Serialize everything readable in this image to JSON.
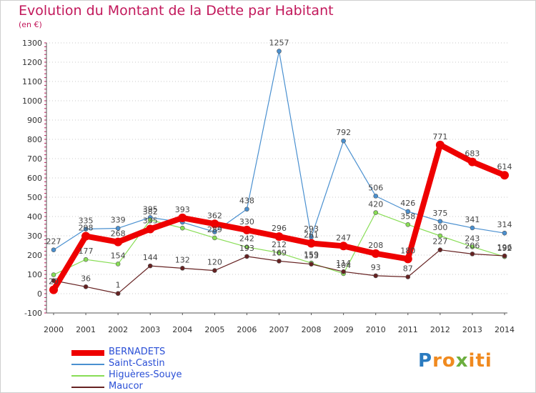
{
  "title": "Evolution du Montant de la Dette par Habitant",
  "subtitle": "(en €)",
  "logo_text": "Proxiti",
  "chart_data": {
    "type": "line",
    "title": "Evolution du Montant de la Dette par Habitant",
    "subtitle": "(en €)",
    "xlabel": "",
    "ylabel": "",
    "x": [
      "2000",
      "2001",
      "2002",
      "2003",
      "2004",
      "2005",
      "2006",
      "2007",
      "2008",
      "2009",
      "2010",
      "2011",
      "2012",
      "2013",
      "2014"
    ],
    "ylim": [
      -100,
      1300
    ],
    "yticks": [
      -100,
      0,
      100,
      200,
      300,
      400,
      500,
      600,
      700,
      800,
      900,
      1000,
      1100,
      1200,
      1300
    ],
    "grid": "horizontal dotted",
    "legend_position": "bottom-left",
    "series": [
      {
        "name": "BERNADETS",
        "color": "#ee0000",
        "values": [
          20,
          298,
          268,
          335,
          393,
          362,
          330,
          296,
          261,
          247,
          208,
          180,
          771,
          683,
          614
        ],
        "labels": [
          "20",
          "298",
          "268",
          "335",
          "393",
          "362",
          "330",
          "296",
          "261",
          "247",
          "208",
          "180",
          "771",
          "683",
          "614"
        ]
      },
      {
        "name": "Saint-Castin",
        "color": "#4a90d0",
        "values": [
          227,
          335,
          339,
          395,
          370,
          320,
          438,
          1257,
          293,
          792,
          506,
          426,
          375,
          341,
          314
        ],
        "labels": [
          "227",
          "335",
          "339",
          "395",
          "",
          "",
          "438",
          "1257",
          "293",
          "792",
          "506",
          "426",
          "375",
          "341",
          "314"
        ]
      },
      {
        "name": "Higuères-Souye",
        "color": "#88dd55",
        "values": [
          98,
          177,
          154,
          382,
          340,
          289,
          242,
          212,
          159,
          104,
          420,
          358,
          300,
          243,
          192
        ],
        "labels": [
          "",
          "177",
          "154",
          "382",
          "",
          "289",
          "242",
          "212",
          "159",
          "104",
          "420",
          "358",
          "300",
          "243",
          "192"
        ]
      },
      {
        "name": "Maucor",
        "color": "#662222",
        "values": [
          68,
          36,
          1,
          144,
          132,
          120,
          193,
          169,
          153,
          114,
          93,
          87,
          227,
          206,
          196
        ],
        "labels": [
          "",
          "36",
          "1",
          "144",
          "132",
          "120",
          "193",
          "169",
          "153",
          "114",
          "93",
          "87",
          "227",
          "206",
          "196"
        ]
      }
    ]
  }
}
